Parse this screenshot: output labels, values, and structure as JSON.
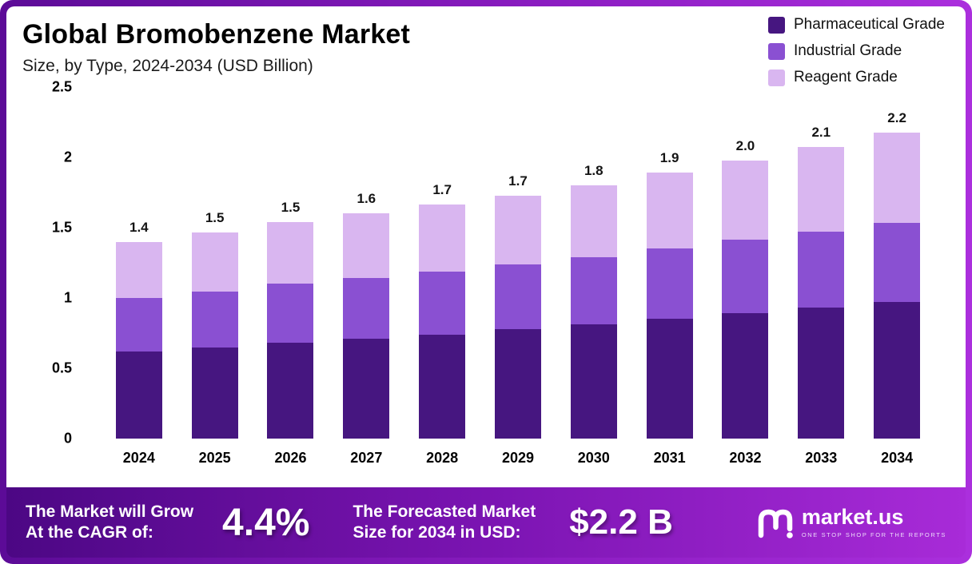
{
  "header": {
    "title": "Global Bromobenzene Market",
    "subtitle": "Size, by Type, 2024-2034 (USD Billion)"
  },
  "legend": {
    "items": [
      {
        "label": "Pharmaceutical Grade",
        "color": "#461680"
      },
      {
        "label": "Industrial Grade",
        "color": "#8a50d2"
      },
      {
        "label": "Reagent Grade",
        "color": "#d9b6f0"
      }
    ]
  },
  "chart_data": {
    "type": "bar",
    "stacked": true,
    "title": "Global Bromobenzene Market",
    "subtitle": "Size, by Type, 2024-2034 (USD Billion)",
    "categories": [
      "2024",
      "2025",
      "2026",
      "2027",
      "2028",
      "2029",
      "2030",
      "2031",
      "2032",
      "2033",
      "2034"
    ],
    "series": [
      {
        "name": "Pharmaceutical Grade",
        "color": "#461680",
        "values": [
          0.62,
          0.65,
          0.68,
          0.71,
          0.74,
          0.78,
          0.81,
          0.85,
          0.89,
          0.93,
          0.97
        ]
      },
      {
        "name": "Industrial Grade",
        "color": "#8a50d2",
        "values": [
          0.38,
          0.4,
          0.42,
          0.43,
          0.45,
          0.46,
          0.48,
          0.5,
          0.52,
          0.54,
          0.56
        ]
      },
      {
        "name": "Reagent Grade",
        "color": "#d9b6f0",
        "values": [
          0.4,
          0.42,
          0.44,
          0.46,
          0.48,
          0.49,
          0.51,
          0.54,
          0.56,
          0.6,
          0.64
        ]
      }
    ],
    "totals": [
      "1.4",
      "1.5",
      "1.5",
      "1.6",
      "1.7",
      "1.7",
      "1.8",
      "1.9",
      "2.0",
      "2.1",
      "2.2"
    ],
    "xlabel": "",
    "ylabel": "",
    "ylim": [
      0,
      2.5
    ],
    "yticks": [
      0,
      0.5,
      1,
      1.5,
      2,
      2.5
    ],
    "ytick_labels": [
      "0",
      "0.5",
      "1",
      "1.5",
      "2",
      "2.5"
    ],
    "grid": false,
    "legend_position": "top-right"
  },
  "footer": {
    "growth_label_line1": "The Market will Grow",
    "growth_label_line2": "At the CAGR of:",
    "cagr_value": "4.4%",
    "forecast_label_line1": "The Forecasted Market",
    "forecast_label_line2": "Size for 2034 in USD:",
    "forecast_value": "$2.2 B",
    "brand": {
      "name": "market.us",
      "tagline": "ONE STOP SHOP FOR THE REPORTS"
    }
  }
}
